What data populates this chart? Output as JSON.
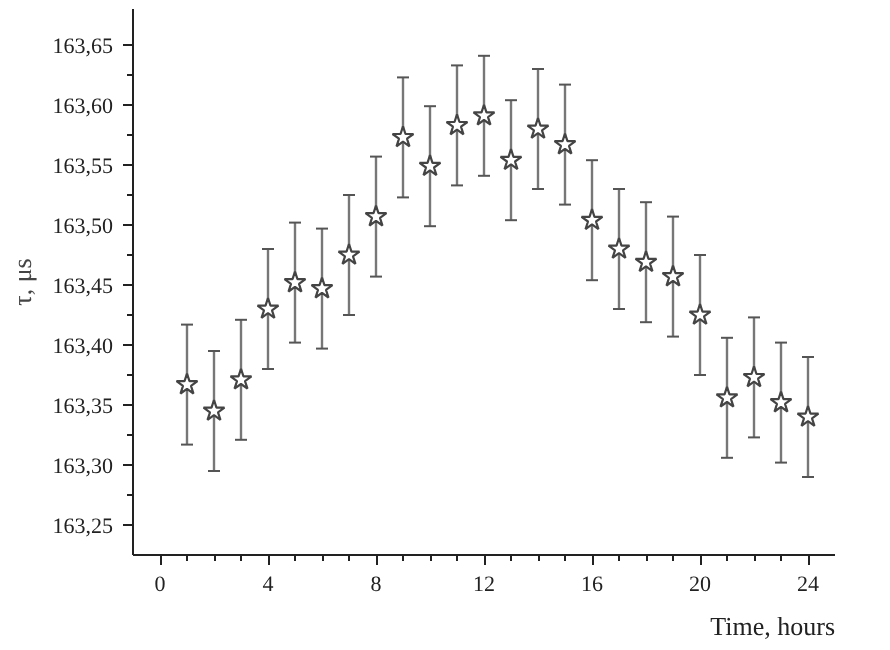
{
  "chart_data": {
    "type": "scatter",
    "xlabel": "Time, hours",
    "ylabel": "τ, μs",
    "x": [
      1,
      2,
      3,
      4,
      5,
      6,
      7,
      8,
      9,
      10,
      11,
      12,
      13,
      14,
      15,
      16,
      17,
      18,
      19,
      20,
      21,
      22,
      23,
      24
    ],
    "series": [
      {
        "color": "#444444",
        "marker": "star",
        "values": [
          163.367,
          163.345,
          163.371,
          163.43,
          163.452,
          163.447,
          163.475,
          163.507,
          163.573,
          163.549,
          163.583,
          163.591,
          163.554,
          163.58,
          163.567,
          163.504,
          163.48,
          163.469,
          163.457,
          163.425,
          163.356,
          163.373,
          163.352,
          163.34
        ],
        "errors": [
          0.05,
          0.05,
          0.05,
          0.05,
          0.05,
          0.05,
          0.05,
          0.05,
          0.05,
          0.05,
          0.05,
          0.05,
          0.05,
          0.05,
          0.05,
          0.05,
          0.05,
          0.05,
          0.05,
          0.05,
          0.05,
          0.05,
          0.05,
          0.05
        ]
      }
    ],
    "xlim": [
      -1,
      25
    ],
    "ylim": [
      163.225,
      163.68
    ],
    "xticks": [
      0,
      4,
      8,
      12,
      16,
      20,
      24
    ],
    "yticks": [
      {
        "value": 163.25,
        "label": "163,25"
      },
      {
        "value": 163.3,
        "label": "163,30"
      },
      {
        "value": 163.35,
        "label": "163,35"
      },
      {
        "value": 163.4,
        "label": "163,40"
      },
      {
        "value": 163.45,
        "label": "163,45"
      },
      {
        "value": 163.5,
        "label": "163,50"
      },
      {
        "value": 163.55,
        "label": "163,55"
      },
      {
        "value": 163.6,
        "label": "163,60"
      },
      {
        "value": 163.65,
        "label": "163,65"
      }
    ],
    "grid": false
  }
}
